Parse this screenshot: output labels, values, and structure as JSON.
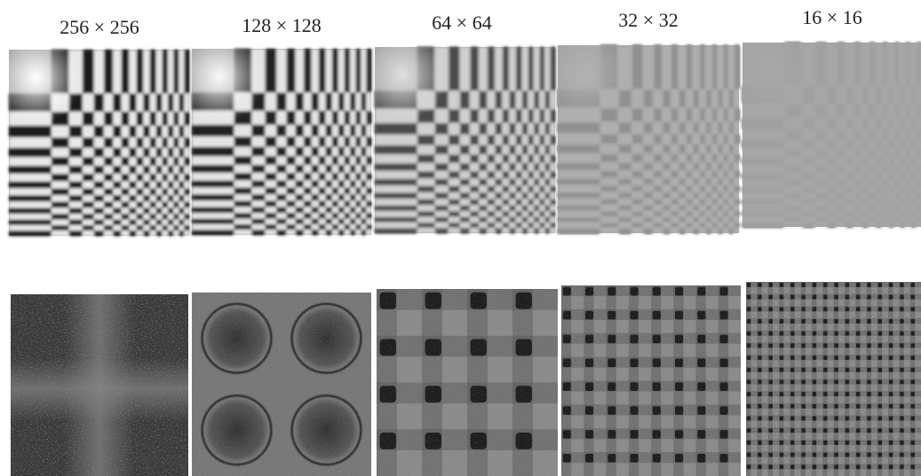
{
  "figure": {
    "labels": [
      "256 × 256",
      "128 × 128",
      "64 × 64",
      "32 × 32",
      "16 × 16"
    ]
  }
}
